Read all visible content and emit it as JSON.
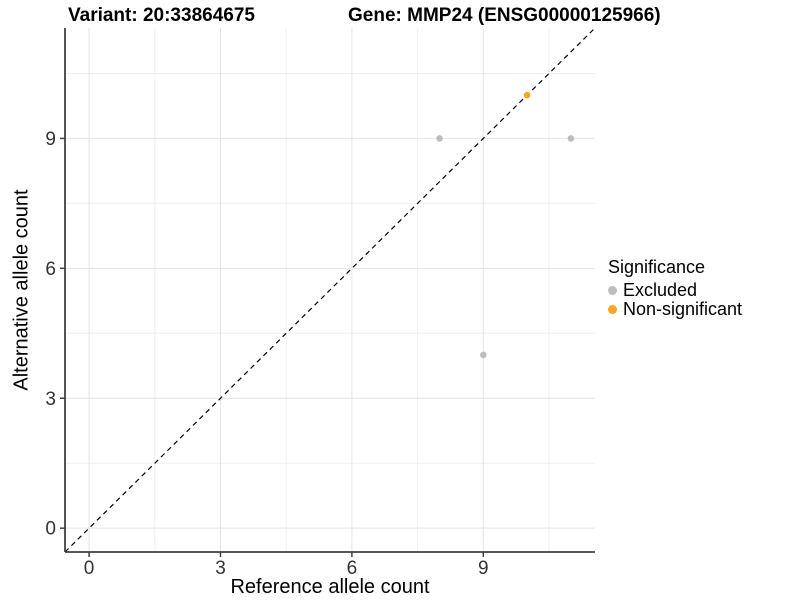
{
  "figure": {
    "title_left": "Variant: 20:33864675",
    "title_right": "Gene: MMP24 (ENSG00000125966)"
  },
  "chart_data": {
    "type": "scatter",
    "xlabel": "Reference allele count",
    "ylabel": "Alternative allele count",
    "xlim": [
      -0.55,
      11.55
    ],
    "ylim": [
      -0.55,
      11.55
    ],
    "x_ticks": [
      0,
      3,
      6,
      9
    ],
    "y_ticks": [
      0,
      3,
      6,
      9
    ],
    "x_minor": [
      1.5,
      4.5,
      7.5,
      10.5
    ],
    "y_minor": [
      1.5,
      4.5,
      7.5,
      10.5
    ],
    "grid": true,
    "identity_line": {
      "slope": 1,
      "intercept": 0,
      "style": "dashed",
      "color": "#000000"
    },
    "series": [
      {
        "name": "Excluded",
        "color": "#BDBDBD",
        "points": [
          [
            8,
            9
          ],
          [
            11,
            9
          ],
          [
            9,
            4
          ]
        ]
      },
      {
        "name": "Non-significant",
        "color": "#F5A623",
        "points": [
          [
            10,
            10
          ]
        ]
      }
    ],
    "legend": {
      "title": "Significance",
      "position": "right",
      "items": [
        {
          "label": "Excluded",
          "color": "#BDBDBD"
        },
        {
          "label": "Non-significant",
          "color": "#F5A623"
        }
      ]
    },
    "style": {
      "grid_major": "#E4E4E4",
      "grid_minor": "#F0F0F0",
      "axis_line": "#404040",
      "tick_label": "#333333",
      "point_radius": 3.3
    }
  }
}
